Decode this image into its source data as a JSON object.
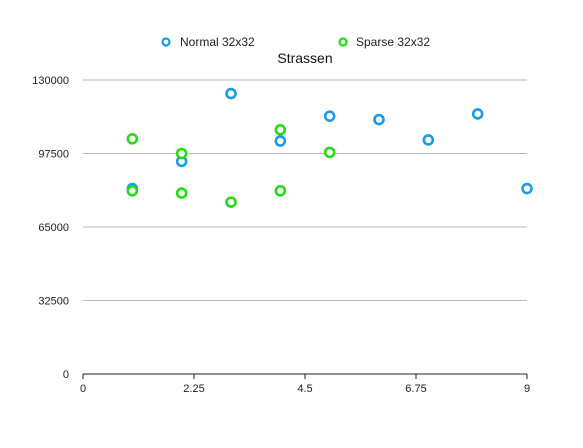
{
  "chart_data": {
    "type": "scatter",
    "title": "Strassen",
    "xlabel": "",
    "ylabel": "",
    "xlim": [
      0,
      9
    ],
    "ylim": [
      0,
      130000
    ],
    "x_ticks": [
      "0",
      "2.25",
      "4.5",
      "6.75",
      "9"
    ],
    "y_ticks": [
      "0",
      "32500",
      "65000",
      "97500",
      "130000"
    ],
    "grid": "horizontal",
    "legend_position": "top-center",
    "series": [
      {
        "name": "Normal 32x32",
        "color": "#1a9be6",
        "points": [
          {
            "x": 1,
            "y": 82000
          },
          {
            "x": 2,
            "y": 94000
          },
          {
            "x": 3,
            "y": 124000
          },
          {
            "x": 4,
            "y": 103000
          },
          {
            "x": 5,
            "y": 114000
          },
          {
            "x": 6,
            "y": 112500
          },
          {
            "x": 7,
            "y": 103500
          },
          {
            "x": 8,
            "y": 115000
          },
          {
            "x": 9,
            "y": 82000
          }
        ]
      },
      {
        "name": "Sparse 32x32",
        "color": "#22dd11",
        "points": [
          {
            "x": 1,
            "y": 104000
          },
          {
            "x": 1,
            "y": 81000
          },
          {
            "x": 2,
            "y": 97500
          },
          {
            "x": 2,
            "y": 80000
          },
          {
            "x": 3,
            "y": 76000
          },
          {
            "x": 4,
            "y": 108000
          },
          {
            "x": 4,
            "y": 81000
          },
          {
            "x": 5,
            "y": 98000
          }
        ]
      }
    ]
  }
}
